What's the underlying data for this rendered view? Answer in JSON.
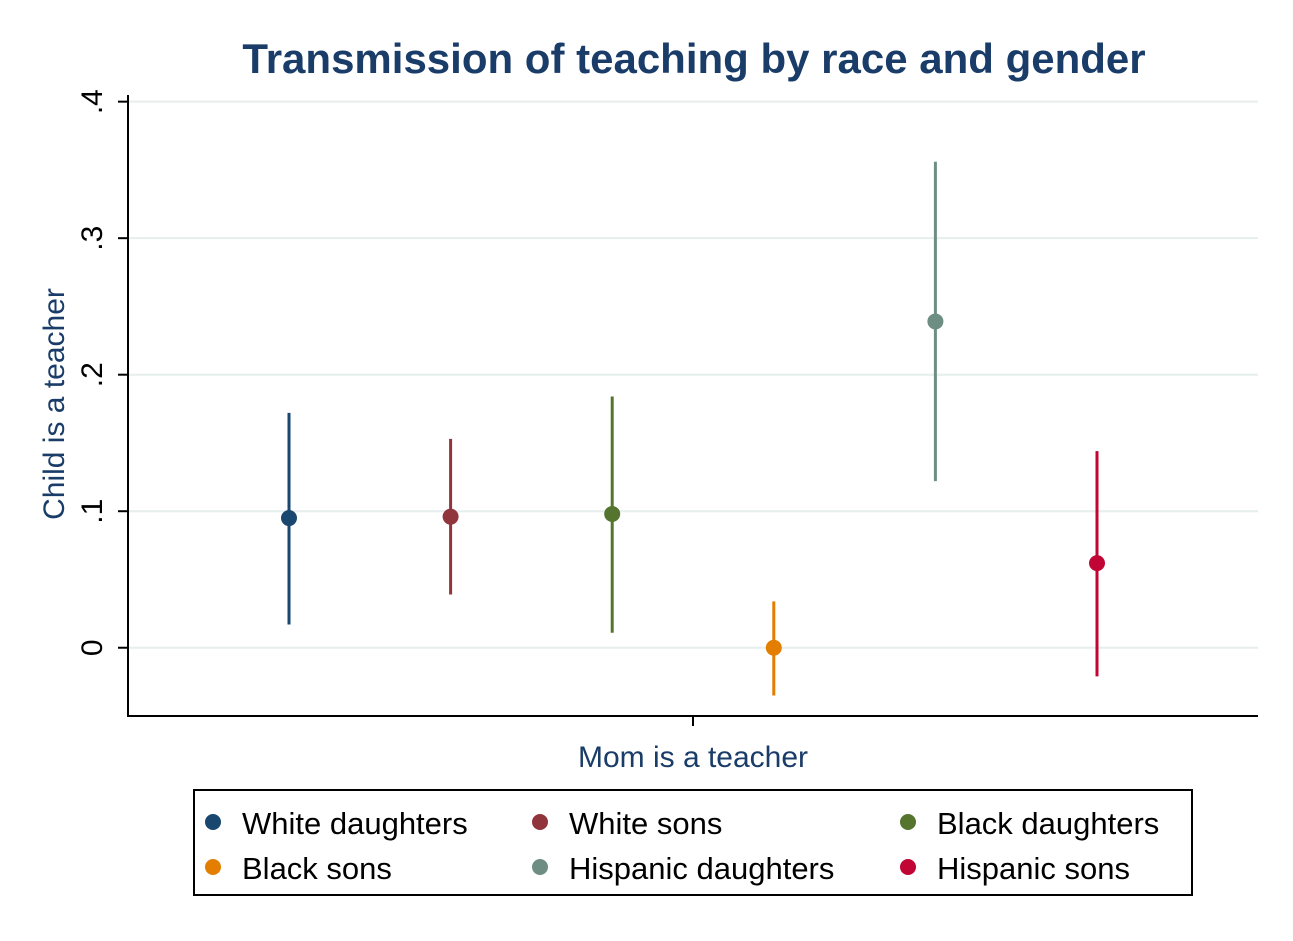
{
  "chart_data": {
    "type": "scatter",
    "title": "Transmission of teaching by race and gender",
    "xlabel": "Mom is a teacher",
    "ylabel": "Child is a teacher",
    "ylim": [
      -0.05,
      0.41
    ],
    "yticks": [
      {
        "value": 0,
        "label": "0"
      },
      {
        "value": 0.1,
        "label": ".1"
      },
      {
        "value": 0.2,
        "label": ".2"
      },
      {
        "value": 0.3,
        "label": ".3"
      },
      {
        "value": 0.4,
        "label": ".4"
      }
    ],
    "grid": true,
    "legend_position": "bottom",
    "legend_columns": 3,
    "error_bars": true,
    "series": [
      {
        "name": "White daughters",
        "value": 0.095,
        "ci_low": 0.017,
        "ci_high": 0.172,
        "color": "#1a476f"
      },
      {
        "name": "White sons",
        "value": 0.096,
        "ci_low": 0.039,
        "ci_high": 0.153,
        "color": "#90353b"
      },
      {
        "name": "Black daughters",
        "value": 0.098,
        "ci_low": 0.011,
        "ci_high": 0.184,
        "color": "#55752f"
      },
      {
        "name": "Black sons",
        "value": 0.0,
        "ci_low": -0.035,
        "ci_high": 0.034,
        "color": "#e37e00"
      },
      {
        "name": "Hispanic daughters",
        "value": 0.239,
        "ci_low": 0.122,
        "ci_high": 0.356,
        "color": "#6e8e84"
      },
      {
        "name": "Hispanic sons",
        "value": 0.062,
        "ci_low": -0.021,
        "ci_high": 0.144,
        "color": "#c10534"
      }
    ]
  },
  "colors": {
    "title": "#1a3c68",
    "axis_title": "#1a3c68",
    "gridline": "#e6eeee",
    "axis": "#000000"
  }
}
